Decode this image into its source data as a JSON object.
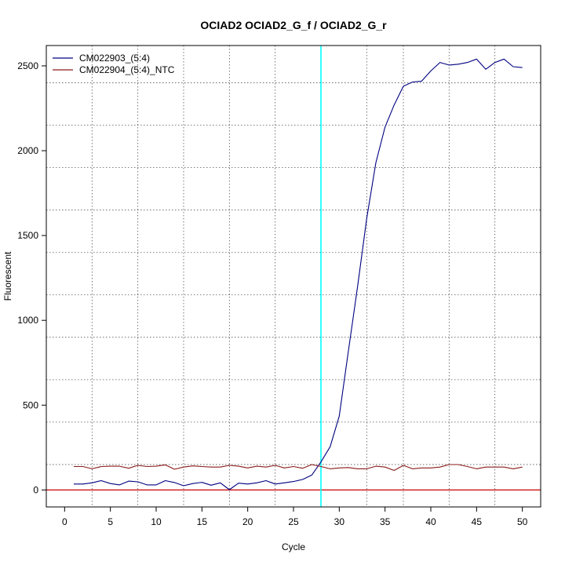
{
  "chart_data": {
    "type": "line",
    "title": "OCIAD2  OCIAD2_G_f / OCIAD2_G_r",
    "xlabel": "Cycle",
    "ylabel": "Fluorescent",
    "xlim": [
      -2,
      52
    ],
    "ylim": [
      -100,
      2620
    ],
    "x_ticks": [
      0,
      5,
      10,
      15,
      20,
      25,
      30,
      35,
      40,
      45,
      50
    ],
    "x_tick_labels": [
      "0",
      "5",
      "10",
      "15",
      "20",
      "25",
      "30",
      "35",
      "40",
      "45",
      "50"
    ],
    "y_ticks": [
      0,
      500,
      1000,
      1500,
      2000,
      2500
    ],
    "y_tick_labels": [
      "0",
      "500",
      "1000",
      "1500",
      "2000",
      "2500"
    ],
    "x_grid": [
      3,
      8,
      13,
      18,
      23,
      28,
      33,
      37,
      42,
      47
    ],
    "y_grid": [
      150,
      400,
      650,
      900,
      1150,
      1400,
      1650,
      1900,
      2150,
      2400
    ],
    "grid": true,
    "legend_position": "top-left",
    "threshold_cycle": 28,
    "threshold_color": "#00ffff",
    "baseline_value": 0,
    "baseline_color": "#cc0000",
    "series": [
      {
        "name": "CM022903_(5:4)",
        "color": "#000080",
        "x": [
          1,
          2,
          3,
          4,
          5,
          6,
          7,
          8,
          9,
          10,
          11,
          12,
          13,
          14,
          15,
          16,
          17,
          18,
          19,
          20,
          21,
          22,
          23,
          24,
          25,
          26,
          27,
          28,
          29,
          30,
          31,
          32,
          33,
          34,
          35,
          36,
          37,
          38,
          39,
          40,
          41,
          42,
          43,
          44,
          45,
          46,
          47,
          48,
          49,
          50
        ],
        "y": [
          35,
          35,
          42,
          55,
          38,
          30,
          52,
          48,
          30,
          30,
          55,
          44,
          25,
          38,
          45,
          28,
          42,
          2,
          40,
          35,
          42,
          55,
          35,
          42,
          50,
          62,
          88,
          165,
          255,
          435,
          820,
          1200,
          1600,
          1930,
          2140,
          2270,
          2380,
          2405,
          2410,
          2470,
          2520,
          2505,
          2510,
          2520,
          2540,
          2480,
          2520,
          2540,
          2495,
          2490
        ]
      },
      {
        "name": "CM022904_(5:4)_NTC",
        "color": "#8b1a1a",
        "x": [
          1,
          2,
          3,
          4,
          5,
          6,
          7,
          8,
          9,
          10,
          11,
          12,
          13,
          14,
          15,
          16,
          17,
          18,
          19,
          20,
          21,
          22,
          23,
          24,
          25,
          26,
          27,
          28,
          29,
          30,
          31,
          32,
          33,
          34,
          35,
          36,
          37,
          38,
          39,
          40,
          41,
          42,
          43,
          44,
          45,
          46,
          47,
          48,
          49,
          50
        ],
        "y": [
          138,
          138,
          125,
          138,
          140,
          140,
          128,
          145,
          138,
          140,
          148,
          122,
          135,
          142,
          138,
          135,
          135,
          145,
          140,
          130,
          140,
          135,
          145,
          130,
          138,
          128,
          150,
          138,
          125,
          130,
          132,
          125,
          125,
          140,
          135,
          115,
          145,
          125,
          130,
          130,
          135,
          150,
          150,
          138,
          125,
          135,
          135,
          135,
          125,
          135
        ]
      }
    ]
  }
}
